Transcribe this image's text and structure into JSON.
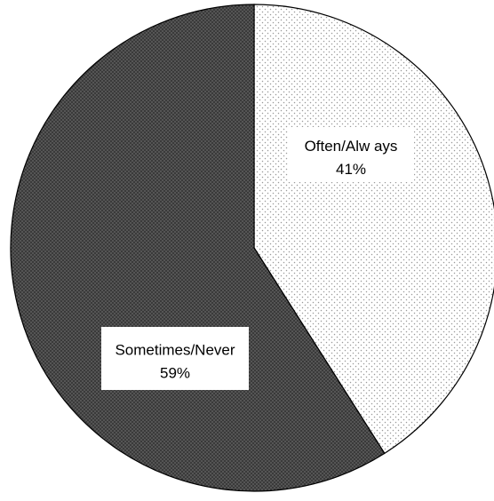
{
  "chart_data": {
    "type": "pie",
    "title": "",
    "slices": [
      {
        "label": "Often/Always",
        "value": 41,
        "percent_label": "41%",
        "display_label": "Often/Alw ays",
        "fill": "light-dotted"
      },
      {
        "label": "Sometimes/Never",
        "value": 59,
        "percent_label": "59%",
        "display_label": "Sometimes/Never",
        "fill": "dark-dotted"
      }
    ],
    "start_angle": "12 o'clock",
    "direction": "clockwise",
    "legend": "none",
    "colors": {
      "background": "#ffffff",
      "light_fill": "#ffffff",
      "light_dot": "#9a9a9a",
      "dark_fill": "#3a3a3a",
      "dark_dot": "#8e8e8e",
      "outline": "#000000",
      "label_box": "#ffffff"
    }
  }
}
